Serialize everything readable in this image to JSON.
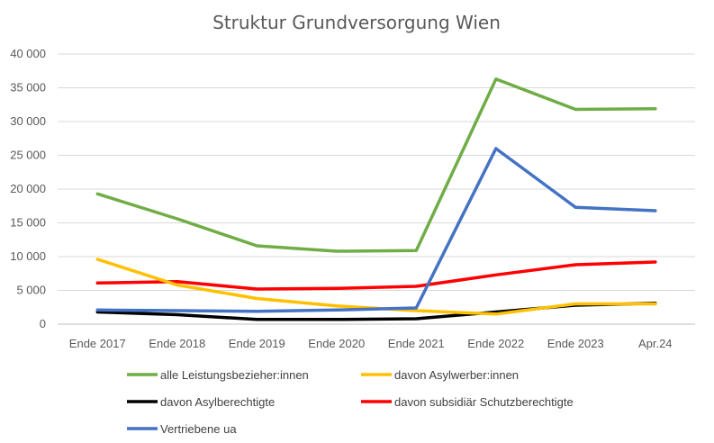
{
  "chart_data": {
    "type": "line",
    "title": "Struktur Grundversorgung Wien",
    "xlabel": "",
    "ylabel": "",
    "categories": [
      "Ende 2017",
      "Ende 2018",
      "Ende 2019",
      "Ende 2020",
      "Ende 2021",
      "Ende 2022",
      "Ende 2023",
      "Apr.24"
    ],
    "ylim": [
      0,
      40000
    ],
    "yticks": [
      0,
      5000,
      10000,
      15000,
      20000,
      25000,
      30000,
      35000,
      40000
    ],
    "ytick_labels": [
      "0",
      "5 000",
      "10 000",
      "15 000",
      "20 000",
      "25 000",
      "30 000",
      "35 000",
      "40 000"
    ],
    "grid": true,
    "legend_position": "bottom",
    "series": [
      {
        "name": "alle Leistungsbezieher:innen",
        "color": "#70AD47",
        "values": [
          19300,
          15600,
          11600,
          10800,
          10900,
          36300,
          31800,
          31900
        ]
      },
      {
        "name": "davon Asylwerber:innen",
        "color": "#FFC000",
        "values": [
          9600,
          5800,
          3800,
          2700,
          2000,
          1500,
          3000,
          3000
        ]
      },
      {
        "name": "davon Asylberechtigte",
        "color": "#000000",
        "values": [
          1800,
          1400,
          700,
          700,
          800,
          1800,
          2800,
          3100
        ]
      },
      {
        "name": "davon subsidiär Schutzberechtigte",
        "color": "#FF0000",
        "values": [
          6100,
          6300,
          5200,
          5300,
          5600,
          7300,
          8800,
          9200
        ]
      },
      {
        "name": "Vertriebene ua",
        "color": "#4472C4",
        "values": [
          2100,
          2000,
          1900,
          2100,
          2400,
          26000,
          17300,
          16800
        ]
      }
    ]
  }
}
